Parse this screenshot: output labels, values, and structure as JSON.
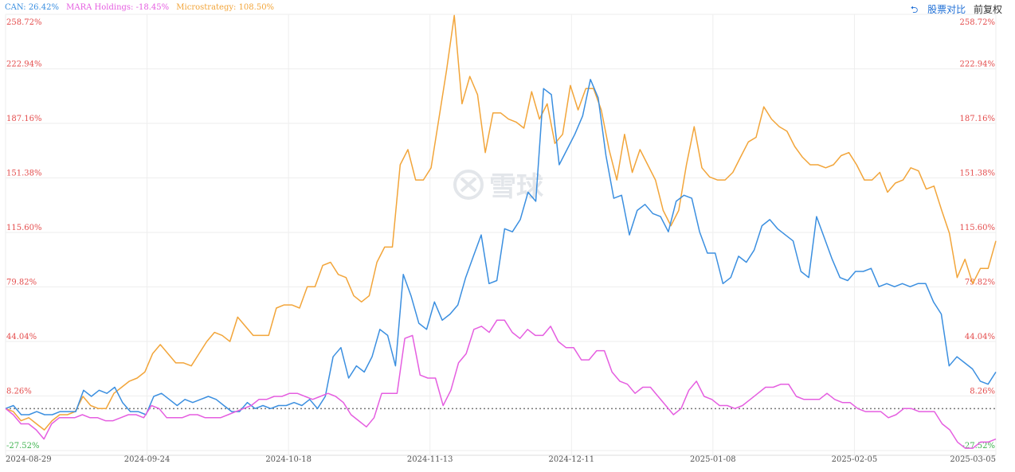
{
  "legend": {
    "can": "CAN: 26.42%",
    "mara": "MARA Holdings: -18.45%",
    "mstr": "Microstrategy: 108.50%"
  },
  "controls": {
    "back_icon": "undo-arrow-icon",
    "compare_label": "股票对比",
    "adjust_label": "前复权"
  },
  "watermark": {
    "text": "雪球",
    "icon": "snowball-logo-icon"
  },
  "colors": {
    "can": "#3b8fe0",
    "mara": "#e55ee0",
    "mstr": "#f2a53a",
    "positive_axis": "#e44c4c",
    "negative_axis": "#3fb34f"
  },
  "chart_data": {
    "type": "line",
    "ylim": [
      -27.52,
      258.72
    ],
    "y_ticks": [
      "258.72%",
      "222.94%",
      "187.16%",
      "151.38%",
      "115.60%",
      "79.82%",
      "44.04%",
      "8.26%",
      "-27.52%"
    ],
    "x_ticks": [
      "2024-08-29",
      "2024-09-24",
      "2024-10-18",
      "2024-11-13",
      "2024-12-11",
      "2025-01-08",
      "2025-02-05",
      "2025-03-05"
    ],
    "baseline": 0,
    "series": [
      {
        "key": "mstr",
        "name": "Microstrategy",
        "values": [
          0,
          -2,
          -8,
          -6,
          -10,
          -14,
          -8,
          -4,
          -4,
          -2,
          8,
          2,
          0,
          0,
          10,
          14,
          18,
          20,
          24,
          36,
          42,
          36,
          30,
          30,
          28,
          36,
          44,
          50,
          48,
          44,
          60,
          54,
          48,
          48,
          48,
          66,
          68,
          68,
          66,
          80,
          80,
          94,
          96,
          88,
          86,
          74,
          70,
          74,
          96,
          106,
          106,
          160,
          170,
          150,
          150,
          158,
          190,
          222,
          258,
          200,
          218,
          206,
          168,
          194,
          194,
          190,
          188,
          184,
          208,
          190,
          200,
          174,
          180,
          212,
          196,
          210,
          210,
          196,
          170,
          150,
          180,
          155,
          170,
          160,
          150,
          130,
          120,
          130,
          160,
          185,
          158,
          152,
          150,
          150,
          155,
          165,
          175,
          178,
          198,
          190,
          185,
          182,
          172,
          165,
          160,
          160,
          158,
          160,
          166,
          168,
          160,
          150,
          150,
          155,
          142,
          148,
          150,
          158,
          156,
          144,
          146,
          130,
          115,
          86,
          98,
          82,
          92,
          92,
          110
        ]
      },
      {
        "key": "can",
        "name": "CAN",
        "values": [
          0,
          2,
          -4,
          -4,
          -2,
          -4,
          -4,
          -2,
          -2,
          -2,
          12,
          8,
          12,
          10,
          14,
          4,
          -2,
          -2,
          -4,
          8,
          10,
          6,
          2,
          6,
          4,
          6,
          8,
          6,
          2,
          -2,
          -2,
          4,
          0,
          2,
          0,
          2,
          2,
          4,
          2,
          6,
          0,
          8,
          34,
          40,
          20,
          28,
          24,
          34,
          52,
          48,
          28,
          88,
          74,
          56,
          52,
          70,
          58,
          62,
          68,
          86,
          100,
          114,
          82,
          84,
          118,
          116,
          124,
          142,
          136,
          210,
          206,
          160,
          170,
          180,
          192,
          216,
          204,
          166,
          138,
          140,
          114,
          130,
          134,
          128,
          126,
          116,
          136,
          140,
          138,
          116,
          102,
          102,
          82,
          86,
          100,
          96,
          104,
          120,
          124,
          118,
          114,
          110,
          90,
          86,
          126,
          112,
          98,
          86,
          84,
          90,
          90,
          92,
          80,
          82,
          80,
          82,
          80,
          82,
          82,
          70,
          62,
          28,
          34,
          30,
          26,
          18,
          16,
          24
        ]
      },
      {
        "key": "mara",
        "name": "MARA Holdings",
        "values": [
          0,
          -4,
          -10,
          -10,
          -14,
          -20,
          -10,
          -6,
          -6,
          -6,
          -4,
          -6,
          -6,
          -8,
          -8,
          -6,
          -4,
          -4,
          -6,
          2,
          0,
          -6,
          -6,
          -6,
          -4,
          -4,
          -6,
          -6,
          -6,
          -4,
          -2,
          0,
          2,
          6,
          6,
          8,
          8,
          10,
          10,
          8,
          6,
          8,
          10,
          8,
          4,
          -4,
          -8,
          -12,
          -6,
          10,
          10,
          10,
          46,
          48,
          22,
          20,
          20,
          2,
          12,
          30,
          36,
          52,
          54,
          50,
          58,
          58,
          50,
          46,
          52,
          48,
          48,
          54,
          44,
          40,
          40,
          32,
          32,
          38,
          38,
          24,
          18,
          16,
          10,
          14,
          14,
          8,
          2,
          -4,
          0,
          12,
          18,
          8,
          6,
          2,
          2,
          0,
          2,
          6,
          10,
          14,
          14,
          16,
          16,
          8,
          6,
          6,
          6,
          10,
          6,
          4,
          4,
          0,
          -2,
          -2,
          -2,
          -6,
          -4,
          0,
          0,
          -2,
          -2,
          -2,
          -10,
          -14,
          -22,
          -26,
          -26,
          -22,
          -22,
          -20
        ]
      }
    ]
  }
}
